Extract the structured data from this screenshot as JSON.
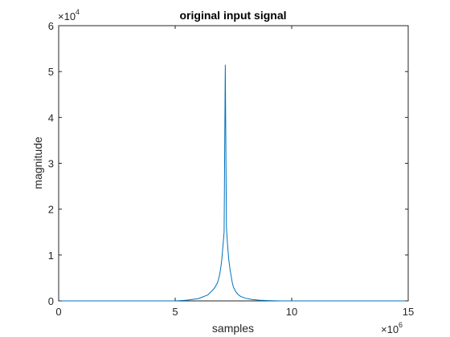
{
  "chart_data": {
    "type": "line",
    "title": "original input signal",
    "xlabel": "samples",
    "ylabel": "magnitude",
    "xlim": [
      0,
      15000000
    ],
    "ylim": [
      0,
      60000
    ],
    "x_ticks": [
      0,
      5,
      10,
      15
    ],
    "y_ticks": [
      0,
      1,
      2,
      3,
      4,
      5,
      6
    ],
    "x_multiplier": {
      "base": "×10",
      "exp": "6"
    },
    "y_multiplier": {
      "base": "×10",
      "exp": "4"
    },
    "grid": false,
    "series": [
      {
        "color": "#0072BD",
        "x": [
          0,
          5000000,
          5500000,
          6000000,
          6200000,
          6400000,
          6500000,
          6600000,
          6700000,
          6800000,
          6850000,
          6900000,
          6950000,
          7000000,
          7050000,
          7100000,
          7150000,
          7200000,
          7250000,
          7300000,
          7350000,
          7400000,
          7450000,
          7500000,
          7600000,
          7700000,
          7800000,
          8000000,
          8300000,
          8600000,
          9000000,
          9500000,
          15000000
        ],
        "y": [
          0,
          0,
          150,
          500,
          900,
          1300,
          1800,
          2300,
          2900,
          3800,
          4500,
          5500,
          7000,
          9000,
          12000,
          15000,
          51500,
          16000,
          12000,
          9000,
          7000,
          5500,
          4000,
          3000,
          2000,
          1400,
          1000,
          600,
          300,
          150,
          60,
          0,
          0
        ]
      }
    ]
  }
}
